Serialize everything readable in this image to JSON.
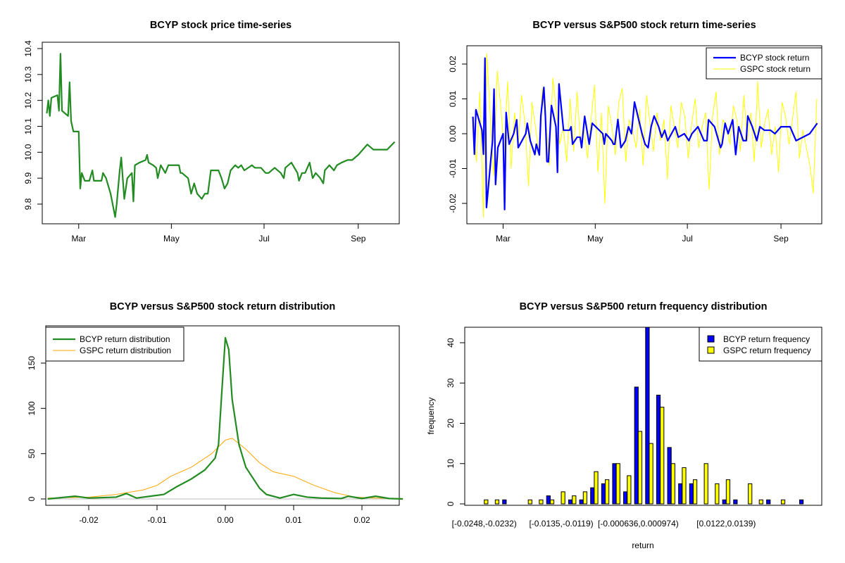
{
  "chart_data": [
    {
      "type": "line",
      "title": "BCYP stock price time-series",
      "xlabel": "",
      "ylabel": "",
      "x_ticks": [
        {
          "label": "Mar",
          "x": 60
        },
        {
          "label": "May",
          "x": 121
        },
        {
          "label": "Jul",
          "x": 182
        },
        {
          "label": "Sep",
          "x": 244
        }
      ],
      "y_ticks": [
        "9.8",
        "9.9",
        "10.0",
        "10.1",
        "10.2",
        "10.3",
        "10.4"
      ],
      "ylim": [
        9.75,
        10.4
      ],
      "xlim": [
        36,
        271
      ],
      "color": "#228B22",
      "x": [
        39,
        40,
        41,
        42,
        46,
        47,
        48,
        49,
        53,
        54,
        55,
        56.5,
        60,
        61,
        62,
        64,
        67,
        69,
        70,
        75,
        76,
        78,
        81,
        82,
        84,
        85,
        87,
        88,
        89,
        90,
        92,
        95,
        96,
        97,
        100,
        104,
        105,
        106,
        109,
        111,
        112,
        114,
        117,
        119,
        126,
        127,
        128,
        132,
        133,
        134,
        136,
        138,
        141,
        143,
        145,
        147,
        152,
        154,
        156,
        158,
        160,
        163,
        165,
        167,
        169,
        174,
        176,
        180,
        183,
        185,
        189,
        193,
        195,
        196,
        200,
        204,
        205,
        207,
        209,
        212,
        214,
        216,
        219,
        221,
        222,
        225,
        228,
        230,
        233,
        237,
        240,
        244,
        247,
        250,
        254,
        263,
        268
      ],
      "values": [
        10.15,
        10.2,
        10.14,
        10.21,
        10.22,
        10.16,
        10.38,
        10.16,
        10.14,
        10.27,
        10.12,
        10.08,
        10.08,
        9.86,
        9.92,
        9.89,
        9.89,
        9.93,
        9.89,
        9.89,
        9.92,
        9.9,
        9.84,
        9.81,
        9.75,
        9.8,
        9.93,
        9.98,
        9.9,
        9.82,
        9.9,
        9.92,
        9.81,
        9.95,
        9.96,
        9.97,
        9.99,
        9.96,
        9.95,
        9.94,
        9.9,
        9.95,
        9.92,
        9.95,
        9.95,
        9.92,
        9.92,
        9.9,
        9.87,
        9.84,
        9.88,
        9.84,
        9.82,
        9.84,
        9.84,
        9.93,
        9.93,
        9.9,
        9.86,
        9.88,
        9.93,
        9.95,
        9.94,
        9.95,
        9.93,
        9.95,
        9.94,
        9.94,
        9.92,
        9.92,
        9.94,
        9.92,
        9.9,
        9.94,
        9.96,
        9.92,
        9.89,
        9.92,
        9.92,
        9.96,
        9.9,
        9.92,
        9.9,
        9.88,
        9.93,
        9.95,
        9.93,
        9.95,
        9.96,
        9.97,
        9.97,
        9.99,
        10.01,
        10.03,
        10.01,
        10.01,
        10.04
      ]
    },
    {
      "type": "line",
      "title": "BCYP versus S&P500 stock return time-series",
      "xlabel": "",
      "ylabel": "",
      "x_ticks": [
        {
          "label": "Mar",
          "x": 60
        },
        {
          "label": "May",
          "x": 121
        },
        {
          "label": "Jul",
          "x": 182
        },
        {
          "label": "Sep",
          "x": 244
        }
      ],
      "y_ticks": [
        {
          "label": "-0.02",
          "v": -0.02
        },
        {
          "label": "-0.01",
          "v": -0.01
        },
        {
          "label": "0.00",
          "v": 0
        },
        {
          "label": "0.01",
          "v": 0.01
        },
        {
          "label": "0.02",
          "v": 0.02
        }
      ],
      "ylim": [
        -0.025,
        0.025
      ],
      "xlim": [
        36,
        271
      ],
      "legend": "top-right",
      "series": [
        {
          "name": "BCYP stock return",
          "color": "#0000FF",
          "x_from": "price_x_skip_first",
          "values": [
            0.0049,
            -0.0059,
            0.0069,
            0.001,
            -0.0059,
            0.0217,
            -0.0212,
            -0.002,
            0.0128,
            -0.0146,
            -0.004,
            0,
            -0.0218,
            0.0061,
            -0.003,
            0,
            0.004,
            -0.004,
            0,
            0.003,
            -0.002,
            -0.006,
            -0.003,
            -0.0061,
            0.0051,
            0.0133,
            0.005,
            -0.008,
            -0.0081,
            0.0081,
            0.002,
            -0.0111,
            0.0143,
            0.001,
            0.001,
            0.002,
            -0.003,
            -0.001,
            -0.001,
            -0.004,
            0.005,
            -0.003,
            0.003,
            0,
            -0.003,
            0,
            -0.002,
            -0.003,
            -0.003,
            0.0041,
            -0.004,
            -0.002,
            0.002,
            0,
            0.0091,
            0,
            -0.003,
            -0.004,
            0.002,
            0.0051,
            0.002,
            -0.001,
            0.001,
            -0.002,
            0.002,
            -0.001,
            0,
            -0.002,
            0,
            0.002,
            -0.002,
            -0.002,
            0.004,
            0.002,
            -0.004,
            -0.003,
            0.003,
            0,
            0.004,
            -0.006,
            0.002,
            -0.002,
            -0.002,
            0.0051,
            0.002,
            -0.002,
            0.002,
            0.001,
            0.001,
            0,
            0.002,
            0.002,
            0.002,
            -0.002,
            0,
            0.003
          ]
        },
        {
          "name": "GSPC stock return",
          "color": "#FFFF00",
          "x_start": 40,
          "x_step": 2.3,
          "values": [
            0.003,
            -0.008,
            0.012,
            -0.024,
            0.023,
            0.005,
            -0.012,
            0.018,
            0.008,
            -0.005,
            0.015,
            -0.01,
            0.006,
            -0.004,
            0.011,
            0.003,
            -0.015,
            0.009,
            0.002,
            -0.006,
            0.013,
            0.004,
            -0.009,
            0.016,
            0.007,
            -0.003,
            0.002,
            -0.008,
            0.01,
            -0.005,
            0.012,
            -0.003,
            0.001,
            -0.007,
            0.004,
            0.014,
            -0.011,
            0.006,
            -0.02,
            0.008,
            0.002,
            -0.006,
            0.009,
            0.013,
            -0.008,
            0.004,
            0.001,
            -0.004,
            0.007,
            -0.009,
            0.011,
            0.003,
            -0.005,
            0.006,
            -0.002,
            0.004,
            -0.013,
            0.008,
            0.002,
            -0.004,
            0.009,
            0.005,
            -0.007,
            0.003,
            0.01,
            -0.004,
            0.002,
            0.006,
            -0.016,
            0.005,
            0.012,
            -0.006,
            0.004,
            0.002,
            -0.003,
            0.008,
            0.004,
            -0.005,
            0.011,
            -0.002,
            0.006,
            -0.008,
            0.015,
            -0.004,
            0.003,
            0.007,
            -0.006,
            0.002,
            -0.011,
            0.009,
            0.005,
            -0.003,
            0.004,
            0.012,
            -0.007,
            0.001,
            -0.004,
            -0.009,
            -0.017,
            0.01
          ]
        }
      ]
    },
    {
      "type": "line",
      "title": "BCYP versus S&P500 stock return distribution",
      "xlabel": "",
      "ylabel": "",
      "x_ticks": [
        {
          "label": "-0.02",
          "v": -0.02
        },
        {
          "label": "-0.01",
          "v": -0.01
        },
        {
          "label": "0.00",
          "v": 0
        },
        {
          "label": "0.01",
          "v": 0.01
        },
        {
          "label": "0.02",
          "v": 0.02
        }
      ],
      "y_ticks": [
        {
          "label": "0",
          "v": 0
        },
        {
          "label": "50",
          "v": 50
        },
        {
          "label": "100",
          "v": 100
        },
        {
          "label": "150",
          "v": 150
        }
      ],
      "xlim": [
        -0.026,
        0.026
      ],
      "ylim": [
        -7,
        190
      ],
      "legend": "top-left",
      "series": [
        {
          "name": "BCYP return distribution",
          "color": "#228B22",
          "x": [
            -0.026,
            -0.022,
            -0.02,
            -0.016,
            -0.0145,
            -0.013,
            -0.011,
            -0.009,
            -0.007,
            -0.005,
            -0.003,
            -0.0015,
            -0.001,
            -0.0005,
            0,
            0.0005,
            0.001,
            0.002,
            0.003,
            0.005,
            0.006,
            0.008,
            0.01,
            0.012,
            0.014,
            0.017,
            0.018,
            0.02,
            0.022,
            0.024,
            0.026
          ],
          "values": [
            0,
            3,
            1,
            2,
            6,
            1,
            3,
            5,
            14,
            22,
            32,
            45,
            60,
            120,
            178,
            165,
            110,
            60,
            35,
            12,
            5,
            1,
            5,
            2,
            1,
            0.5,
            3,
            0.5,
            3,
            0.5,
            0
          ]
        },
        {
          "name": "GSPC return distribution",
          "color": "#FFA500",
          "x": [
            -0.026,
            -0.02,
            -0.016,
            -0.012,
            -0.01,
            -0.008,
            -0.005,
            -0.002,
            0,
            0.001,
            0.003,
            0.005,
            0.007,
            0.01,
            0.013,
            0.016,
            0.019,
            0.022,
            0.026
          ],
          "values": [
            1,
            2,
            5,
            10,
            15,
            25,
            35,
            50,
            65,
            67,
            55,
            40,
            30,
            25,
            15,
            7,
            2,
            1,
            0.5
          ]
        }
      ]
    },
    {
      "type": "bar",
      "title": "BCYP versus S&P500 return frequency distribution",
      "xlabel": "return",
      "ylabel": "frequency",
      "y_ticks": [
        {
          "label": "0",
          "v": 0
        },
        {
          "label": "10",
          "v": 10
        },
        {
          "label": "20",
          "v": 20
        },
        {
          "label": "30",
          "v": 30
        },
        {
          "label": "40",
          "v": 40
        }
      ],
      "ylim": [
        0,
        44
      ],
      "legend": "top-right",
      "category_labels": [
        {
          "index": 0,
          "label": "[-0.0248,-0.0232)"
        },
        {
          "index": 7,
          "label": "[-0.0135,-0.0119)"
        },
        {
          "index": 14,
          "label": "[-0.000636,0.000974)"
        },
        {
          "index": 22,
          "label": "[0.0122,0.0139)"
        }
      ],
      "series": [
        {
          "name": "BCYP return frequency",
          "color": "#0000FF",
          "values": [
            0,
            0,
            1,
            0,
            0,
            0,
            2,
            0,
            1,
            1,
            4,
            5,
            10,
            3,
            29,
            44,
            27,
            14,
            5,
            5,
            0,
            0,
            1,
            1,
            0,
            0,
            1,
            0,
            0,
            1
          ]
        },
        {
          "name": "GSPC return frequency",
          "color": "#FFFF00",
          "values": [
            1,
            1,
            0,
            0,
            1,
            1,
            1,
            3,
            2,
            3,
            8,
            6,
            10,
            7,
            18,
            15,
            24,
            10,
            9,
            6,
            10,
            5,
            6,
            0,
            5,
            1,
            0,
            1,
            0,
            0
          ]
        }
      ]
    }
  ]
}
